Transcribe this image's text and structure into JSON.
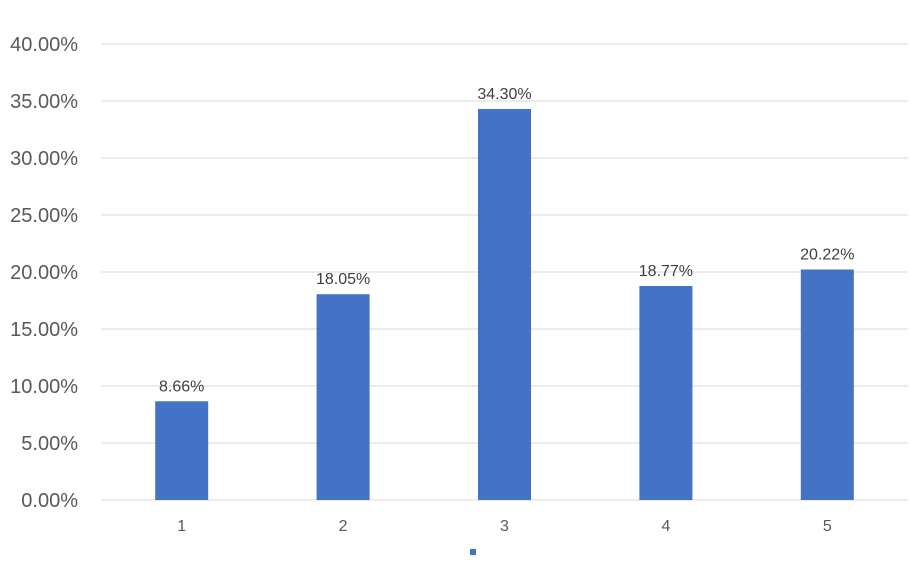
{
  "chart_data": {
    "type": "bar",
    "categories": [
      "1",
      "2",
      "3",
      "4",
      "5"
    ],
    "values": [
      8.66,
      18.05,
      34.3,
      18.77,
      20.22
    ],
    "data_labels": [
      "8.66%",
      "18.05%",
      "34.30%",
      "18.77%",
      "20.22%"
    ],
    "y_ticks": [
      0,
      5,
      10,
      15,
      20,
      25,
      30,
      35,
      40
    ],
    "y_tick_labels": [
      "0.00%",
      "5.00%",
      "10.00%",
      "15.00%",
      "20.00%",
      "25.00%",
      "30.00%",
      "35.00%",
      "40.00%"
    ],
    "ylim": [
      0,
      40
    ],
    "grid": true,
    "legend": "bottom",
    "bar_color": "#4472C4",
    "grid_color": "#D9D9D9"
  }
}
